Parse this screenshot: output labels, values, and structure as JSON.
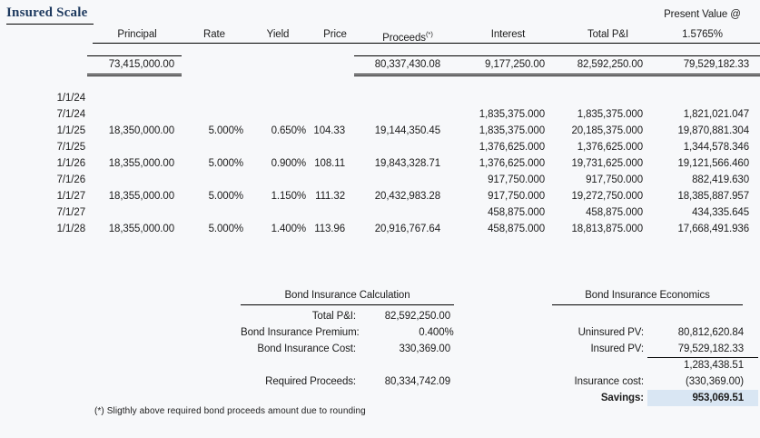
{
  "page": {
    "background": "#f7f8fa",
    "title_color": "#1e3a5f",
    "highlight_color": "#d9e6f3",
    "line_color": "#000000"
  },
  "title": "Insured Scale",
  "scale_table": {
    "pv_header_line1": "Present Value @",
    "columns": {
      "principal": "Principal",
      "rate": "Rate",
      "yield": "Yield",
      "price": "Price",
      "proceeds": "Proceeds",
      "proceeds_footnote_mark": "(*)",
      "interest": "Interest",
      "total_pi": "Total P&I",
      "pv_rate": "1.5765%"
    },
    "totals": {
      "principal": "73,415,000.00",
      "proceeds": "80,337,430.08",
      "interest": "9,177,250.00",
      "total_pi": "82,592,250.00",
      "pv": "79,529,182.33"
    },
    "rows": [
      {
        "date": "1/1/24",
        "principal": "",
        "rate": "",
        "yield": "",
        "price": "",
        "proceeds": "",
        "interest": "",
        "total_pi": "",
        "pv": ""
      },
      {
        "date": "7/1/24",
        "principal": "",
        "rate": "",
        "yield": "",
        "price": "",
        "proceeds": "",
        "interest": "1,835,375.000",
        "total_pi": "1,835,375.000",
        "pv": "1,821,021.047"
      },
      {
        "date": "1/1/25",
        "principal": "18,350,000.00",
        "rate": "5.000%",
        "yield": "0.650%",
        "price": "104.33",
        "proceeds": "19,144,350.45",
        "interest": "1,835,375.000",
        "total_pi": "20,185,375.000",
        "pv": "19,870,881.304"
      },
      {
        "date": "7/1/25",
        "principal": "",
        "rate": "",
        "yield": "",
        "price": "",
        "proceeds": "",
        "interest": "1,376,625.000",
        "total_pi": "1,376,625.000",
        "pv": "1,344,578.346"
      },
      {
        "date": "1/1/26",
        "principal": "18,355,000.00",
        "rate": "5.000%",
        "yield": "0.900%",
        "price": "108.11",
        "proceeds": "19,843,328.71",
        "interest": "1,376,625.000",
        "total_pi": "19,731,625.000",
        "pv": "19,121,566.460"
      },
      {
        "date": "7/1/26",
        "principal": "",
        "rate": "",
        "yield": "",
        "price": "",
        "proceeds": "",
        "interest": "917,750.000",
        "total_pi": "917,750.000",
        "pv": "882,419.630"
      },
      {
        "date": "1/1/27",
        "principal": "18,355,000.00",
        "rate": "5.000%",
        "yield": "1.150%",
        "price": "111.32",
        "proceeds": "20,432,983.28",
        "interest": "917,750.000",
        "total_pi": "19,272,750.000",
        "pv": "18,385,887.957"
      },
      {
        "date": "7/1/27",
        "principal": "",
        "rate": "",
        "yield": "",
        "price": "",
        "proceeds": "",
        "interest": "458,875.000",
        "total_pi": "458,875.000",
        "pv": "434,335.645"
      },
      {
        "date": "1/1/28",
        "principal": "18,355,000.00",
        "rate": "5.000%",
        "yield": "1.400%",
        "price": "113.96",
        "proceeds": "20,916,767.64",
        "interest": "458,875.000",
        "total_pi": "18,813,875.000",
        "pv": "17,668,491.936"
      }
    ]
  },
  "insurance_calculation": {
    "title": "Bond Insurance Calculation",
    "rows": [
      {
        "label": "Total P&I:",
        "value": "82,592,250.00"
      },
      {
        "label": "Bond Insurance Premium:",
        "value": "0.400%"
      },
      {
        "label": "Bond Insurance Cost:",
        "value": "330,369.00"
      },
      {
        "label": "",
        "value": ""
      },
      {
        "label": "Required Proceeds:",
        "value": "80,334,742.09"
      }
    ]
  },
  "insurance_economics": {
    "title": "Bond Insurance Economics",
    "rows": [
      {
        "label": "",
        "value": ""
      },
      {
        "label": "Uninsured PV:",
        "value": "80,812,620.84"
      },
      {
        "label": "Insured PV:",
        "value": "79,529,182.33"
      },
      {
        "label": "",
        "value": "1,283,438.51"
      },
      {
        "label": "Insurance cost:",
        "value": "(330,369.00)"
      },
      {
        "label": "Savings:",
        "value": "953,069.51"
      }
    ]
  },
  "footnote": "(*) Sligthly above required bond proceeds amount due to rounding"
}
